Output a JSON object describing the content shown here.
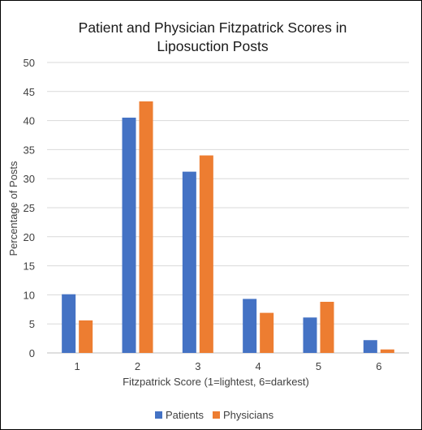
{
  "chart_data": {
    "type": "bar",
    "title_lines": [
      "Patient and Physician Fitzpatrick Scores in",
      "Liposuction Posts"
    ],
    "xlabel": "Fitzpatrick Score (1=lightest, 6=darkest)",
    "ylabel": "Percentage of Posts",
    "categories": [
      "1",
      "2",
      "3",
      "4",
      "5",
      "6"
    ],
    "ylim": [
      0,
      50
    ],
    "yticks": [
      0,
      5,
      10,
      15,
      20,
      25,
      30,
      35,
      40,
      45,
      50
    ],
    "grid": true,
    "legend_position": "bottom",
    "series": [
      {
        "name": "Patients",
        "color": "#4472c4",
        "values": [
          10.1,
          40.5,
          31.2,
          9.3,
          6.1,
          2.2
        ]
      },
      {
        "name": "Physicians",
        "color": "#ed7d31",
        "values": [
          5.6,
          43.3,
          34.0,
          6.9,
          8.8,
          0.6
        ]
      }
    ]
  }
}
